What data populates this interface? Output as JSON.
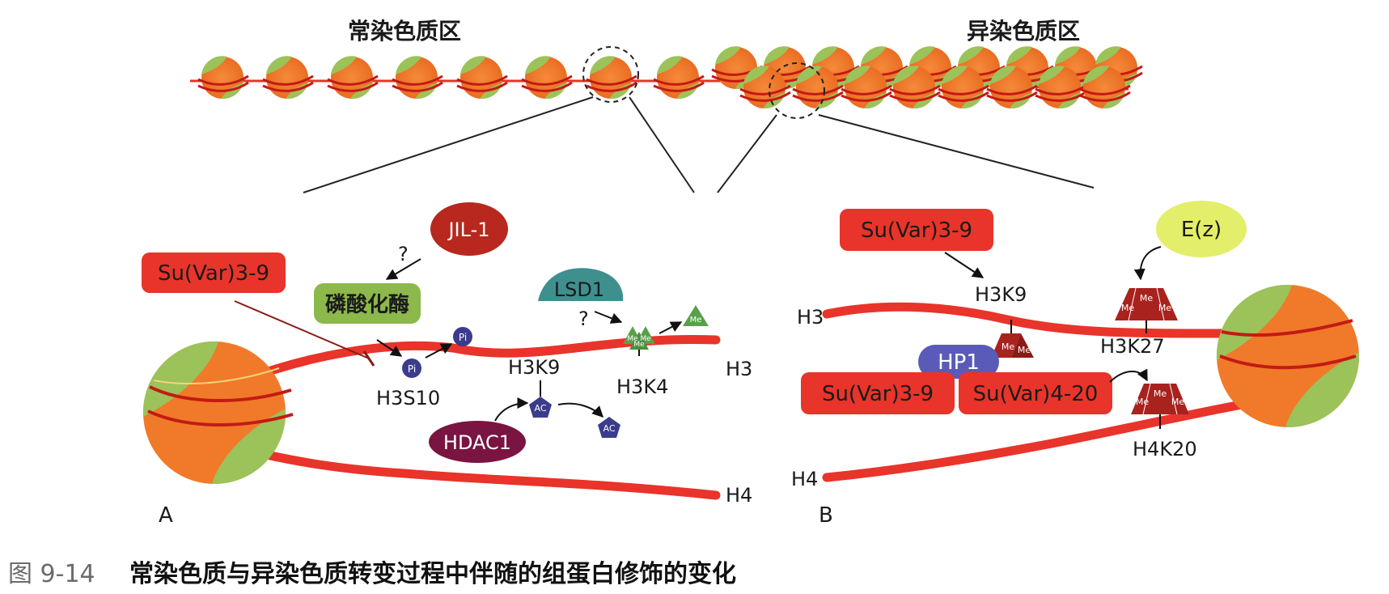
{
  "top": {
    "euchromatin_label": "常染色质区",
    "heterochromatin_label": "异染色质区"
  },
  "panel_a": {
    "letter": "A",
    "jil1": "JIL-1",
    "question1": "?",
    "kinase": "磷酸化酶",
    "suvar39": "Su(Var)3-9",
    "pi1": "Pi",
    "pi2": "Pi",
    "h3s10": "H3S10",
    "h3k9": "H3K9",
    "lsd1": "LSD1",
    "question2": "?",
    "me_small": [
      "Me",
      "Me",
      "Me"
    ],
    "me_free": "Me",
    "h3k4": "H3K4",
    "h3": "H3",
    "h4": "H4",
    "hdac1": "HDAC1",
    "ac1": "AC",
    "ac2": "AC"
  },
  "panel_b": {
    "letter": "B",
    "suvar39_top": "Su(Var)3-9",
    "ez": "E(z)",
    "h3k9": "H3K9",
    "h3": "H3",
    "hp1": "HP1",
    "suvar39_low": "Su(Var)3-9",
    "suvar420": "Su(Var)4-20",
    "h3k27": "H3K27",
    "h4k20": "H4K20",
    "h4": "H4",
    "me_k9": [
      "Me",
      "Me"
    ],
    "me_k27": [
      "Me",
      "Me",
      "Me"
    ],
    "me_k20": [
      "Me",
      "Me",
      "Me"
    ]
  },
  "caption": {
    "number": "图 9-14",
    "text": "常染色质与异染色质转变过程中伴随的组蛋白修饰的变化"
  },
  "colors": {
    "dna": "#e8342a",
    "nucleosome_orange": "#f07a2a",
    "nucleosome_green": "#9cc25a",
    "kinase_green": "#8cb84c",
    "jil1_red": "#b8281e",
    "lsd1_teal": "#3f8f8f",
    "hdac1_purple": "#7a1440",
    "pi_blue": "#3c3c8c",
    "me_green": "#5aa04a",
    "me_darkred": "#a8221e",
    "hp1_blue": "#5a5ab8",
    "ez_yellow": "#e3ee6a"
  }
}
